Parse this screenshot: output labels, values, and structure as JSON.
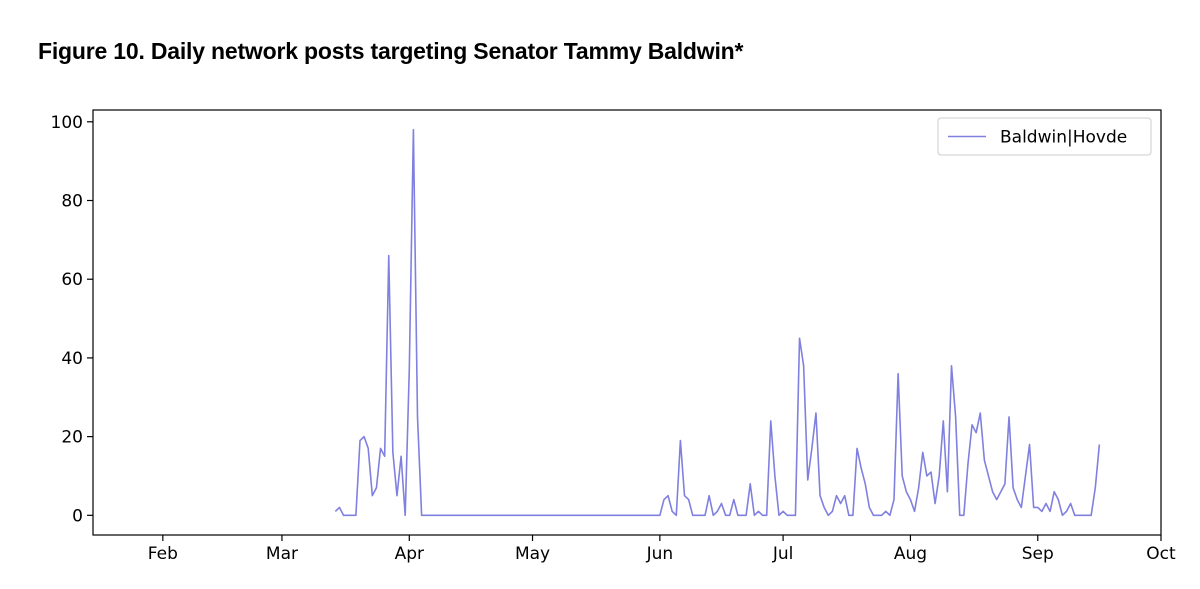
{
  "figure_label": "Figure 10.",
  "figure_title": "Daily network posts targeting Senator Tammy Baldwin*",
  "colors": {
    "series": "#8080e0",
    "axis": "#000000"
  },
  "chart_data": {
    "type": "line",
    "title": "Figure 10. Daily network posts targeting Senator Tammy Baldwin*",
    "xlabel": "",
    "ylabel": "",
    "x_axis_type": "date",
    "xlim": [
      "2024-01-15",
      "2024-10-01"
    ],
    "ylim": [
      -5,
      103
    ],
    "x_ticks": [
      {
        "label": "Feb",
        "date": "2024-02-01"
      },
      {
        "label": "Mar",
        "date": "2024-03-01"
      },
      {
        "label": "Apr",
        "date": "2024-04-01"
      },
      {
        "label": "May",
        "date": "2024-05-01"
      },
      {
        "label": "Jun",
        "date": "2024-06-01"
      },
      {
        "label": "Jul",
        "date": "2024-07-01"
      },
      {
        "label": "Aug",
        "date": "2024-08-01"
      },
      {
        "label": "Sep",
        "date": "2024-09-01"
      },
      {
        "label": "Oct",
        "date": "2024-10-01"
      }
    ],
    "y_ticks": [
      0,
      20,
      40,
      60,
      80,
      100
    ],
    "legend": {
      "position": "top-right",
      "entries": [
        "Baldwin|Hovde"
      ]
    },
    "grid": false,
    "series": [
      {
        "name": "Baldwin|Hovde",
        "color": "#8080e0",
        "points": [
          [
            "2024-03-14",
            1
          ],
          [
            "2024-03-15",
            2
          ],
          [
            "2024-03-16",
            0
          ],
          [
            "2024-03-17",
            0
          ],
          [
            "2024-03-18",
            0
          ],
          [
            "2024-03-19",
            0
          ],
          [
            "2024-03-20",
            19
          ],
          [
            "2024-03-21",
            20
          ],
          [
            "2024-03-22",
            17
          ],
          [
            "2024-03-23",
            5
          ],
          [
            "2024-03-24",
            7
          ],
          [
            "2024-03-25",
            17
          ],
          [
            "2024-03-26",
            15
          ],
          [
            "2024-03-27",
            66
          ],
          [
            "2024-03-28",
            16
          ],
          [
            "2024-03-29",
            5
          ],
          [
            "2024-03-30",
            15
          ],
          [
            "2024-03-31",
            0
          ],
          [
            "2024-04-01",
            37
          ],
          [
            "2024-04-02",
            98
          ],
          [
            "2024-04-03",
            25
          ],
          [
            "2024-04-04",
            0
          ],
          [
            "2024-06-01",
            0
          ],
          [
            "2024-06-02",
            4
          ],
          [
            "2024-06-03",
            5
          ],
          [
            "2024-06-04",
            1
          ],
          [
            "2024-06-05",
            0
          ],
          [
            "2024-06-06",
            19
          ],
          [
            "2024-06-07",
            5
          ],
          [
            "2024-06-08",
            4
          ],
          [
            "2024-06-09",
            0
          ],
          [
            "2024-06-10",
            0
          ],
          [
            "2024-06-11",
            0
          ],
          [
            "2024-06-12",
            0
          ],
          [
            "2024-06-13",
            5
          ],
          [
            "2024-06-14",
            0
          ],
          [
            "2024-06-15",
            1
          ],
          [
            "2024-06-16",
            3
          ],
          [
            "2024-06-17",
            0
          ],
          [
            "2024-06-18",
            0
          ],
          [
            "2024-06-19",
            4
          ],
          [
            "2024-06-20",
            0
          ],
          [
            "2024-06-21",
            0
          ],
          [
            "2024-06-22",
            0
          ],
          [
            "2024-06-23",
            8
          ],
          [
            "2024-06-24",
            0
          ],
          [
            "2024-06-25",
            1
          ],
          [
            "2024-06-26",
            0
          ],
          [
            "2024-06-27",
            0
          ],
          [
            "2024-06-28",
            24
          ],
          [
            "2024-06-29",
            10
          ],
          [
            "2024-06-30",
            0
          ],
          [
            "2024-07-01",
            1
          ],
          [
            "2024-07-02",
            0
          ],
          [
            "2024-07-03",
            0
          ],
          [
            "2024-07-04",
            0
          ],
          [
            "2024-07-05",
            45
          ],
          [
            "2024-07-06",
            38
          ],
          [
            "2024-07-07",
            9
          ],
          [
            "2024-07-08",
            17
          ],
          [
            "2024-07-09",
            26
          ],
          [
            "2024-07-10",
            5
          ],
          [
            "2024-07-11",
            2
          ],
          [
            "2024-07-12",
            0
          ],
          [
            "2024-07-13",
            1
          ],
          [
            "2024-07-14",
            5
          ],
          [
            "2024-07-15",
            3
          ],
          [
            "2024-07-16",
            5
          ],
          [
            "2024-07-17",
            0
          ],
          [
            "2024-07-18",
            0
          ],
          [
            "2024-07-19",
            17
          ],
          [
            "2024-07-20",
            12
          ],
          [
            "2024-07-21",
            8
          ],
          [
            "2024-07-22",
            2
          ],
          [
            "2024-07-23",
            0
          ],
          [
            "2024-07-24",
            0
          ],
          [
            "2024-07-25",
            0
          ],
          [
            "2024-07-26",
            1
          ],
          [
            "2024-07-27",
            0
          ],
          [
            "2024-07-28",
            4
          ],
          [
            "2024-07-29",
            36
          ],
          [
            "2024-07-30",
            10
          ],
          [
            "2024-07-31",
            6
          ],
          [
            "2024-08-01",
            4
          ],
          [
            "2024-08-02",
            1
          ],
          [
            "2024-08-03",
            7
          ],
          [
            "2024-08-04",
            16
          ],
          [
            "2024-08-05",
            10
          ],
          [
            "2024-08-06",
            11
          ],
          [
            "2024-08-07",
            3
          ],
          [
            "2024-08-08",
            10
          ],
          [
            "2024-08-09",
            24
          ],
          [
            "2024-08-10",
            6
          ],
          [
            "2024-08-11",
            38
          ],
          [
            "2024-08-12",
            25
          ],
          [
            "2024-08-13",
            0
          ],
          [
            "2024-08-14",
            0
          ],
          [
            "2024-08-15",
            13
          ],
          [
            "2024-08-16",
            23
          ],
          [
            "2024-08-17",
            21
          ],
          [
            "2024-08-18",
            26
          ],
          [
            "2024-08-19",
            14
          ],
          [
            "2024-08-20",
            10
          ],
          [
            "2024-08-21",
            6
          ],
          [
            "2024-08-22",
            4
          ],
          [
            "2024-08-23",
            6
          ],
          [
            "2024-08-24",
            8
          ],
          [
            "2024-08-25",
            25
          ],
          [
            "2024-08-26",
            7
          ],
          [
            "2024-08-27",
            4
          ],
          [
            "2024-08-28",
            2
          ],
          [
            "2024-08-29",
            10
          ],
          [
            "2024-08-30",
            18
          ],
          [
            "2024-08-31",
            2
          ],
          [
            "2024-09-01",
            2
          ],
          [
            "2024-09-02",
            1
          ],
          [
            "2024-09-03",
            3
          ],
          [
            "2024-09-04",
            1
          ],
          [
            "2024-09-05",
            6
          ],
          [
            "2024-09-06",
            4
          ],
          [
            "2024-09-07",
            0
          ],
          [
            "2024-09-08",
            1
          ],
          [
            "2024-09-09",
            3
          ],
          [
            "2024-09-10",
            0
          ],
          [
            "2024-09-11",
            0
          ],
          [
            "2024-09-12",
            0
          ],
          [
            "2024-09-13",
            0
          ],
          [
            "2024-09-14",
            0
          ],
          [
            "2024-09-15",
            7
          ],
          [
            "2024-09-16",
            18
          ]
        ]
      }
    ]
  }
}
